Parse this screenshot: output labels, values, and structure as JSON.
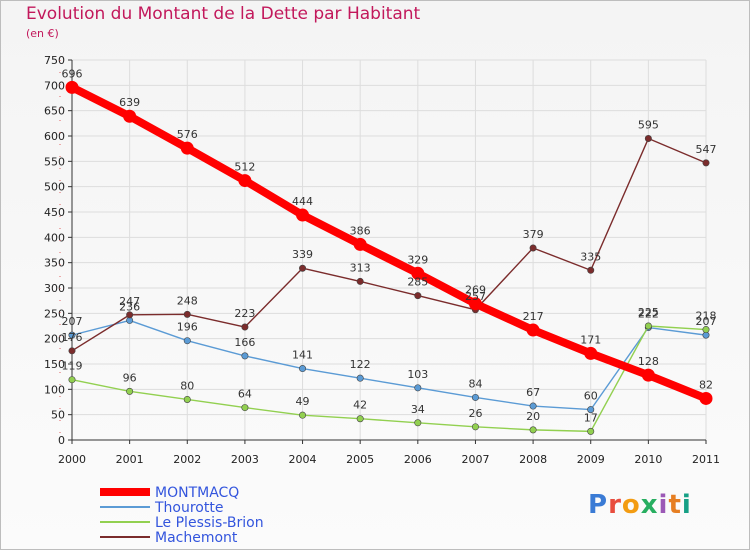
{
  "title": "Evolution du Montant de la Dette par Habitant",
  "subtitle": "(en €)",
  "logo": "Proxiti",
  "chart_data": {
    "type": "line",
    "title": "Evolution du Montant de la Dette par Habitant",
    "subtitle": "(en €)",
    "xlabel": "",
    "ylabel": "",
    "ylim": [
      0,
      750
    ],
    "yticks": [
      0,
      50,
      100,
      150,
      200,
      250,
      300,
      350,
      400,
      450,
      500,
      550,
      600,
      650,
      700,
      750
    ],
    "grid": true,
    "legend": "bottom-left",
    "x": [
      "2000",
      "2001",
      "2002",
      "2003",
      "2004",
      "2005",
      "2006",
      "2007",
      "2008",
      "2009",
      "2010",
      "2011"
    ],
    "series": [
      {
        "name": "MONTMACQ",
        "color": "#ff0000",
        "values": [
          696,
          639,
          576,
          512,
          444,
          386,
          329,
          269,
          217,
          171,
          128,
          82
        ]
      },
      {
        "name": "Thourotte",
        "color": "#5b9bd5",
        "values": [
          207,
          236,
          196,
          166,
          141,
          122,
          103,
          84,
          67,
          60,
          222,
          207
        ]
      },
      {
        "name": "Le Plessis-Brion",
        "color": "#92d050",
        "values": [
          119,
          96,
          80,
          64,
          49,
          42,
          34,
          26,
          20,
          17,
          225,
          218
        ]
      },
      {
        "name": "Machemont",
        "color": "#7b2c2c",
        "values": [
          176,
          247,
          248,
          223,
          339,
          313,
          285,
          257,
          379,
          335,
          595,
          547
        ]
      }
    ]
  }
}
